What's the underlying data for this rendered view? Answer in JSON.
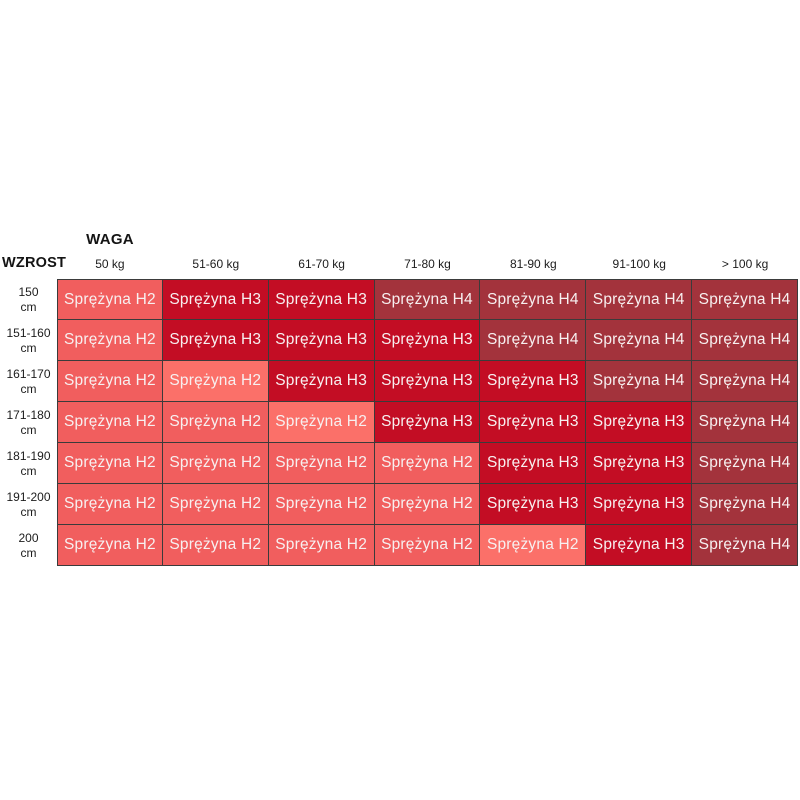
{
  "table": {
    "corner_label": "WZROST",
    "weight_label": "WAGA",
    "columns": [
      "50 kg",
      "51-60 kg",
      "61-70 kg",
      "71-80 kg",
      "81-90 kg",
      "91-100 kg",
      "> 100 kg"
    ],
    "colors": {
      "h2": "#F15E5E",
      "h2l": "#FB7069",
      "h3": "#C30D24",
      "h4": "#A3333C",
      "cell_text": "#F7F0F0",
      "grid_line": "#3B3B3B"
    },
    "rows": [
      {
        "height": "150",
        "unit": "cm",
        "cells": [
          {
            "text": "Sprężyna H2",
            "variant": "h2"
          },
          {
            "text": "Sprężyna H3",
            "variant": "h3"
          },
          {
            "text": "Sprężyna H3",
            "variant": "h3"
          },
          {
            "text": "Sprężyna H4",
            "variant": "h4"
          },
          {
            "text": "Sprężyna H4",
            "variant": "h4"
          },
          {
            "text": "Sprężyna H4",
            "variant": "h4"
          },
          {
            "text": "Sprężyna H4",
            "variant": "h4"
          }
        ]
      },
      {
        "height": "151-160",
        "unit": "cm",
        "cells": [
          {
            "text": "Sprężyna H2",
            "variant": "h2"
          },
          {
            "text": "Sprężyna H3",
            "variant": "h3"
          },
          {
            "text": "Sprężyna H3",
            "variant": "h3"
          },
          {
            "text": "Sprężyna H3",
            "variant": "h3"
          },
          {
            "text": "Sprężyna H4",
            "variant": "h4"
          },
          {
            "text": "Sprężyna H4",
            "variant": "h4"
          },
          {
            "text": "Sprężyna H4",
            "variant": "h4"
          }
        ]
      },
      {
        "height": "161-170",
        "unit": "cm",
        "cells": [
          {
            "text": "Sprężyna H2",
            "variant": "h2"
          },
          {
            "text": "Sprężyna H2",
            "variant": "h2l"
          },
          {
            "text": "Sprężyna H3",
            "variant": "h3"
          },
          {
            "text": "Sprężyna H3",
            "variant": "h3"
          },
          {
            "text": "Sprężyna H3",
            "variant": "h3"
          },
          {
            "text": "Sprężyna H4",
            "variant": "h4"
          },
          {
            "text": "Sprężyna H4",
            "variant": "h4"
          }
        ]
      },
      {
        "height": "171-180",
        "unit": "cm",
        "cells": [
          {
            "text": "Sprężyna H2",
            "variant": "h2"
          },
          {
            "text": "Sprężyna H2",
            "variant": "h2"
          },
          {
            "text": "Sprężyna H2",
            "variant": "h2l"
          },
          {
            "text": "Sprężyna H3",
            "variant": "h3"
          },
          {
            "text": "Sprężyna H3",
            "variant": "h3"
          },
          {
            "text": "Sprężyna H3",
            "variant": "h3"
          },
          {
            "text": "Sprężyna H4",
            "variant": "h4"
          }
        ]
      },
      {
        "height": "181-190",
        "unit": "cm",
        "cells": [
          {
            "text": "Sprężyna H2",
            "variant": "h2"
          },
          {
            "text": "Sprężyna H2",
            "variant": "h2"
          },
          {
            "text": "Sprężyna H2",
            "variant": "h2"
          },
          {
            "text": "Sprężyna H2",
            "variant": "h2"
          },
          {
            "text": "Sprężyna H3",
            "variant": "h3"
          },
          {
            "text": "Sprężyna H3",
            "variant": "h3"
          },
          {
            "text": "Sprężyna H4",
            "variant": "h4"
          }
        ]
      },
      {
        "height": "191-200",
        "unit": "cm",
        "cells": [
          {
            "text": "Sprężyna H2",
            "variant": "h2"
          },
          {
            "text": "Sprężyna H2",
            "variant": "h2"
          },
          {
            "text": "Sprężyna H2",
            "variant": "h2"
          },
          {
            "text": "Sprężyna H2",
            "variant": "h2"
          },
          {
            "text": "Sprężyna H3",
            "variant": "h3"
          },
          {
            "text": "Sprężyna H3",
            "variant": "h3"
          },
          {
            "text": "Sprężyna H4",
            "variant": "h4"
          }
        ]
      },
      {
        "height": "200",
        "unit": "cm",
        "cells": [
          {
            "text": "Sprężyna H2",
            "variant": "h2"
          },
          {
            "text": "Sprężyna H2",
            "variant": "h2"
          },
          {
            "text": "Sprężyna H2",
            "variant": "h2"
          },
          {
            "text": "Sprężyna H2",
            "variant": "h2"
          },
          {
            "text": "Sprężyna H2",
            "variant": "h2l"
          },
          {
            "text": "Sprężyna H3",
            "variant": "h3"
          },
          {
            "text": "Sprężyna H4",
            "variant": "h4"
          }
        ]
      }
    ]
  },
  "chart_data": {
    "type": "heatmap",
    "title": "",
    "x_axis_label": "WAGA",
    "y_axis_label": "WZROST",
    "columns": [
      "50 kg",
      "51-60 kg",
      "61-70 kg",
      "71-80 kg",
      "81-90 kg",
      "91-100 kg",
      "> 100 kg"
    ],
    "rows": [
      "150 cm",
      "151-160 cm",
      "161-170 cm",
      "171-180 cm",
      "181-190 cm",
      "191-200 cm",
      "200 cm"
    ],
    "cell_text_prefix": "Sprężyna",
    "values": [
      [
        "H2",
        "H3",
        "H3",
        "H4",
        "H4",
        "H4",
        "H4"
      ],
      [
        "H2",
        "H3",
        "H3",
        "H3",
        "H4",
        "H4",
        "H4"
      ],
      [
        "H2",
        "H2",
        "H3",
        "H3",
        "H3",
        "H4",
        "H4"
      ],
      [
        "H2",
        "H2",
        "H2",
        "H3",
        "H3",
        "H3",
        "H4"
      ],
      [
        "H2",
        "H2",
        "H2",
        "H2",
        "H3",
        "H3",
        "H4"
      ],
      [
        "H2",
        "H2",
        "H2",
        "H2",
        "H3",
        "H3",
        "H4"
      ],
      [
        "H2",
        "H2",
        "H2",
        "H2",
        "H2",
        "H3",
        "H4"
      ]
    ],
    "color_map": {
      "H2": "#F15E5E",
      "H3": "#C30D24",
      "H4": "#A3333C"
    },
    "legend_position": "none",
    "grid": true
  }
}
